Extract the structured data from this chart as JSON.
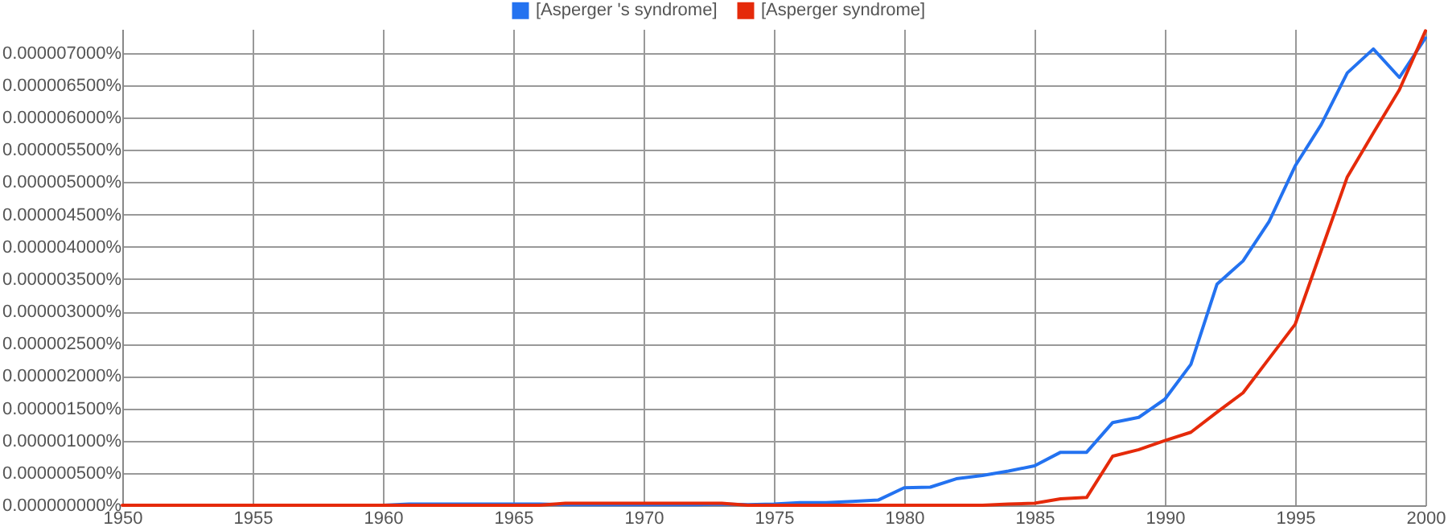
{
  "chart_data": {
    "type": "line",
    "x": [
      1950,
      1951,
      1952,
      1953,
      1954,
      1955,
      1956,
      1957,
      1958,
      1959,
      1960,
      1961,
      1962,
      1963,
      1964,
      1965,
      1966,
      1967,
      1968,
      1969,
      1970,
      1971,
      1972,
      1973,
      1974,
      1975,
      1976,
      1977,
      1978,
      1979,
      1980,
      1981,
      1982,
      1983,
      1984,
      1985,
      1986,
      1987,
      1988,
      1989,
      1990,
      1991,
      1992,
      1993,
      1994,
      1995,
      1996,
      1997,
      1998,
      1999,
      2000
    ],
    "series": [
      {
        "name": "[Asperger 's syndrome]",
        "color": "#2372f0",
        "values": [
          null,
          null,
          null,
          null,
          null,
          null,
          null,
          null,
          null,
          0,
          0,
          2e-08,
          2e-08,
          2e-08,
          2e-08,
          2e-08,
          2e-08,
          1e-08,
          1e-08,
          1e-08,
          1e-08,
          1e-08,
          1e-08,
          2e-08,
          1e-08,
          2e-08,
          4e-08,
          4e-08,
          6e-08,
          8e-08,
          2.7e-07,
          2.8e-07,
          4.1e-07,
          4.6e-07,
          5.3e-07,
          6.1e-07,
          8.2e-07,
          8.2e-07,
          1.28e-06,
          1.36e-06,
          1.64e-06,
          2.18e-06,
          3.42e-06,
          3.78e-06,
          4.39e-06,
          5.25e-06,
          5.89e-06,
          6.69e-06,
          7.06e-06,
          6.62e-06,
          7.23e-06
        ]
      },
      {
        "name": "[Asperger syndrome]",
        "color": "#e52a0a",
        "values": [
          0,
          0,
          0,
          0,
          0,
          0,
          0,
          0,
          0,
          0,
          0,
          0,
          0,
          0,
          0,
          0,
          0,
          3e-08,
          3e-08,
          3e-08,
          3e-08,
          3e-08,
          3e-08,
          3e-08,
          0,
          0,
          0,
          0,
          0,
          0,
          0,
          0,
          0,
          0,
          2e-08,
          3e-08,
          1e-07,
          1.2e-07,
          7.6e-07,
          8.6e-07,
          1e-06,
          1.13e-06,
          1.44e-06,
          1.74e-06,
          2.27e-06,
          2.8e-06,
          3.94e-06,
          5.08e-06,
          5.76e-06,
          6.43e-06,
          7.34e-06
        ]
      }
    ],
    "xlim": [
      1950,
      2000
    ],
    "xticks": [
      1950,
      1955,
      1960,
      1965,
      1970,
      1975,
      1980,
      1985,
      1990,
      1995,
      2000
    ],
    "ylim": [
      0,
      7.37e-06
    ],
    "yticks": [
      {
        "value": 0,
        "label": "0.000000000%"
      },
      {
        "value": 5e-07,
        "label": "0.000000500%"
      },
      {
        "value": 1e-06,
        "label": "0.000001000%"
      },
      {
        "value": 1.5e-06,
        "label": "0.000001500%"
      },
      {
        "value": 2e-06,
        "label": "0.000002000%"
      },
      {
        "value": 2.5e-06,
        "label": "0.000002500%"
      },
      {
        "value": 3e-06,
        "label": "0.000003000%"
      },
      {
        "value": 3.5e-06,
        "label": "0.000003500%"
      },
      {
        "value": 4e-06,
        "label": "0.000004000%"
      },
      {
        "value": 4.5e-06,
        "label": "0.000004500%"
      },
      {
        "value": 5e-06,
        "label": "0.000005000%"
      },
      {
        "value": 5.5e-06,
        "label": "0.000005500%"
      },
      {
        "value": 6e-06,
        "label": "0.000006000%"
      },
      {
        "value": 6.5e-06,
        "label": "0.000006500%"
      },
      {
        "value": 7e-06,
        "label": "0.000007000%"
      }
    ],
    "grid": true,
    "legend": "top"
  }
}
